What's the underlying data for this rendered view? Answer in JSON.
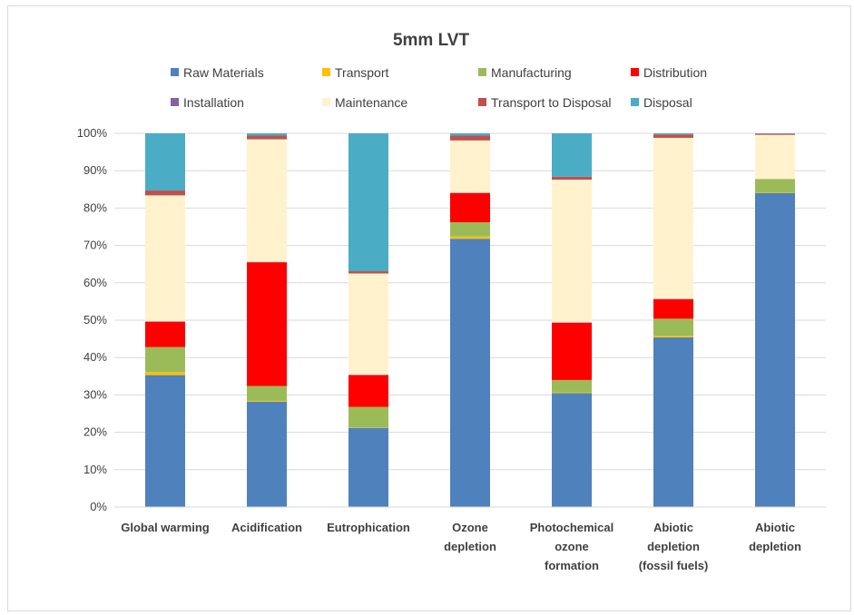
{
  "chart_data": {
    "type": "bar",
    "stacked": true,
    "percent": true,
    "title": "5mm LVT",
    "xlabel": "",
    "ylabel": "",
    "ylim": [
      0,
      100
    ],
    "yticks": [
      "0%",
      "10%",
      "20%",
      "30%",
      "40%",
      "50%",
      "60%",
      "70%",
      "80%",
      "90%",
      "100%"
    ],
    "grid": true,
    "legend_position": "top",
    "categories": [
      [
        "Global warming"
      ],
      [
        "Acidification"
      ],
      [
        "Eutrophication"
      ],
      [
        "Ozone",
        "depletion"
      ],
      [
        "Photochemical",
        "ozone",
        "formation"
      ],
      [
        "Abiotic",
        "depletion",
        "(fossil fuels)"
      ],
      [
        "Abiotic",
        "depletion"
      ]
    ],
    "series": [
      {
        "name": "Raw Materials",
        "color": "#4f81bd",
        "values": [
          35.3,
          28.2,
          21.2,
          71.8,
          30.5,
          45.4,
          84.0
        ]
      },
      {
        "name": "Transport",
        "color": "#ffc000",
        "values": [
          0.8,
          0.2,
          0.1,
          0.6,
          0.2,
          0.4,
          0.1
        ]
      },
      {
        "name": "Manufacturing",
        "color": "#9bbb59",
        "values": [
          6.7,
          4.0,
          5.5,
          3.8,
          3.3,
          4.6,
          3.7
        ]
      },
      {
        "name": "Distribution",
        "color": "#ff0000",
        "values": [
          6.8,
          33.1,
          8.5,
          7.8,
          15.3,
          5.2,
          0.0
        ]
      },
      {
        "name": "Installation",
        "color": "#8064a2",
        "values": [
          0.1,
          0.1,
          0.1,
          0.1,
          0.1,
          0.1,
          0.0
        ]
      },
      {
        "name": "Maintenance",
        "color": "#fff2cc",
        "values": [
          33.7,
          32.8,
          27.1,
          14.0,
          38.2,
          43.1,
          11.8
        ]
      },
      {
        "name": "Transport to Disposal",
        "color": "#c0504d",
        "values": [
          1.3,
          1.0,
          0.6,
          1.3,
          0.8,
          0.9,
          0.3
        ]
      },
      {
        "name": "Disposal",
        "color": "#4bacc6",
        "values": [
          15.3,
          0.6,
          36.9,
          0.6,
          11.6,
          0.3,
          0.1
        ]
      }
    ]
  }
}
